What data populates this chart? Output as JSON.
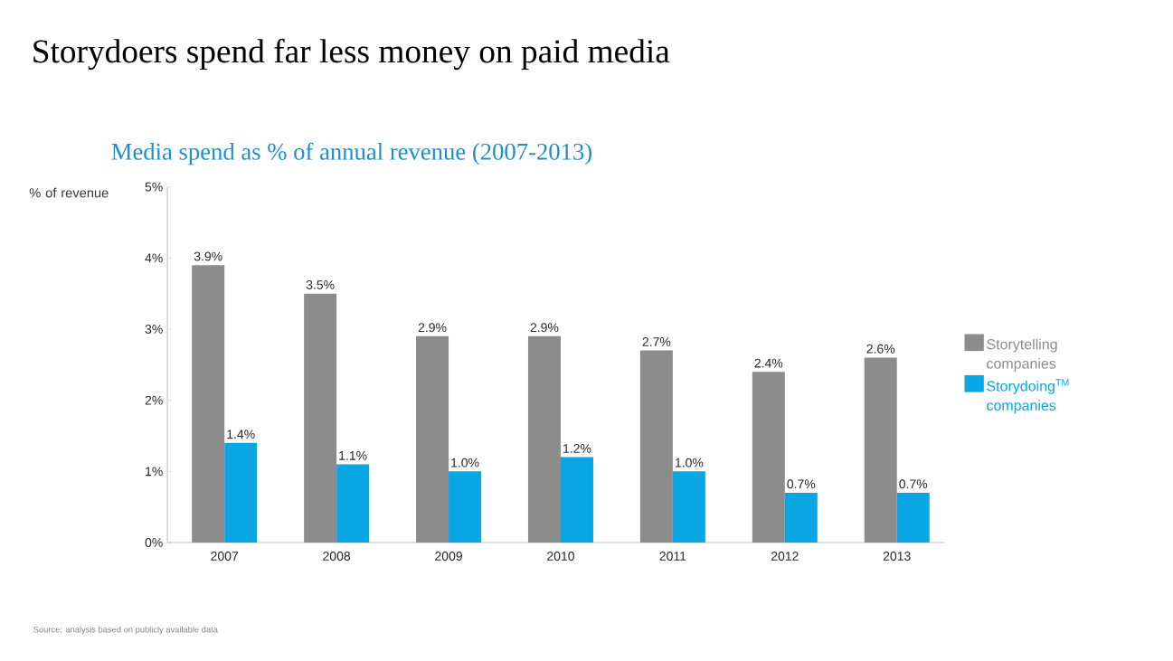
{
  "chart_data": {
    "type": "bar",
    "title": "Storydoers spend far less money on paid media",
    "subtitle": "Media spend as % of annual revenue (2007-2013)",
    "ylabel": "% of revenue",
    "categories": [
      "2007",
      "2008",
      "2009",
      "2010",
      "2011",
      "2012",
      "2013"
    ],
    "series": [
      {
        "name": "Storytelling companies",
        "color": "#8c8c8c",
        "values": [
          3.9,
          3.5,
          2.9,
          2.9,
          2.7,
          2.4,
          2.6
        ],
        "value_labels": [
          "3.9%",
          "3.5%",
          "2.9%",
          "2.9%",
          "2.7%",
          "2.4%",
          "2.6%"
        ]
      },
      {
        "name": "Storydoing$^{TM}$ companies",
        "color": "#0aa5e3",
        "values": [
          1.4,
          1.1,
          1.0,
          1.2,
          1.0,
          0.7,
          0.7
        ],
        "value_labels": [
          "1.4%",
          "1.1%",
          "1.0%",
          "1.2%",
          "1.0%",
          "0.7%",
          "0.7%"
        ]
      }
    ],
    "ylim": [
      0,
      5
    ],
    "yticks": [
      {
        "value": 0,
        "label": "0%"
      },
      {
        "value": 1,
        "label": "1%"
      },
      {
        "value": 2,
        "label": "2%"
      },
      {
        "value": 3,
        "label": "3%"
      },
      {
        "value": 4,
        "label": "4%"
      },
      {
        "value": 5,
        "label": "5%"
      }
    ],
    "legend": "right",
    "grid": false,
    "annotations": [
      "Source: analysis based on publicly available data"
    ]
  }
}
